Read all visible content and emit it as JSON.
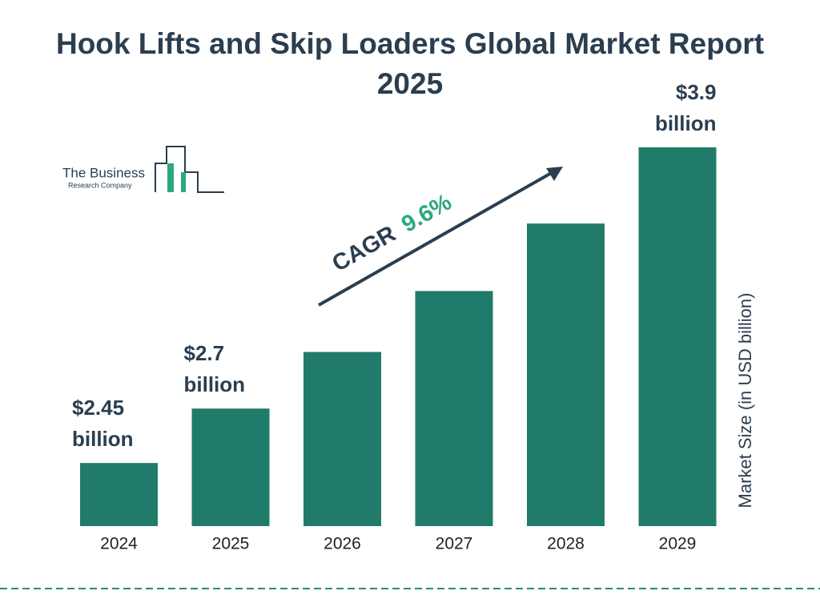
{
  "logo": {
    "line1": "The Business",
    "line2": "Research Company"
  },
  "chart_data": {
    "type": "bar",
    "title": "Hook Lifts and Skip Loaders Global Market Report 2025",
    "categories": [
      "2024",
      "2025",
      "2026",
      "2027",
      "2028",
      "2029"
    ],
    "values": [
      2.45,
      2.7,
      2.96,
      3.24,
      3.55,
      3.9
    ],
    "value_labels": [
      "$2.45 billion",
      "$2.7 billion",
      null,
      null,
      null,
      "$3.9 billion"
    ],
    "color": "#217b6b",
    "y_label": "Market Size (in USD billion)",
    "cagr_label": "CAGR",
    "cagr_value": "9.6%"
  }
}
